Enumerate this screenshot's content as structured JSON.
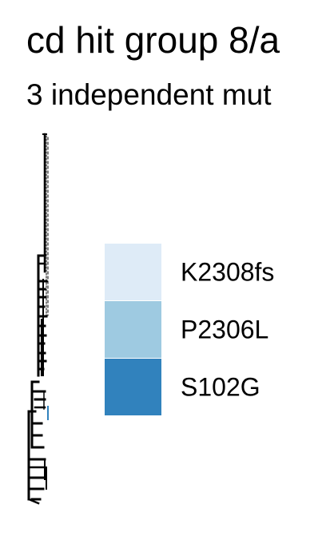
{
  "chart_data": {
    "type": "tree",
    "title": "cd hit group 8/a",
    "subtitle": "3 independent mut",
    "legend": {
      "entries": [
        {
          "label": "K2308fs",
          "color": "#deebf7"
        },
        {
          "label": "P2306L",
          "color": "#9ecae1"
        },
        {
          "label": "S102G",
          "color": "#3182bd"
        }
      ]
    }
  }
}
